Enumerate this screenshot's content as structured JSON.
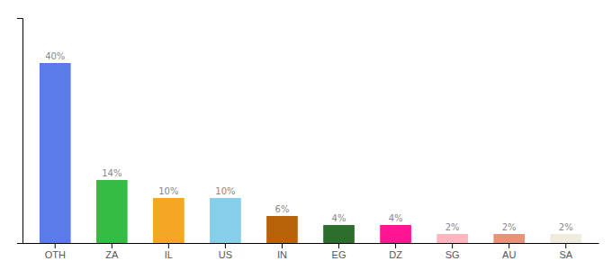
{
  "chart_data": {
    "type": "bar",
    "categories": [
      "OTH",
      "ZA",
      "IL",
      "US",
      "IN",
      "EG",
      "DZ",
      "SG",
      "AU",
      "SA"
    ],
    "values": [
      40,
      14,
      10,
      10,
      6,
      4,
      4,
      2,
      2,
      2
    ],
    "value_labels": [
      "40%",
      "14%",
      "10%",
      "10%",
      "6%",
      "4%",
      "4%",
      "2%",
      "2%",
      "2%"
    ],
    "colors": [
      "#5b7be8",
      "#33bb44",
      "#f5a623",
      "#87ceeb",
      "#b8620a",
      "#2d6e2d",
      "#ff1493",
      "#ffb6c1",
      "#e8947a",
      "#f0ede0"
    ],
    "data_labels": true,
    "ylim": [
      0,
      50
    ],
    "yticks": [],
    "grid": false,
    "tick_labels": "x"
  }
}
